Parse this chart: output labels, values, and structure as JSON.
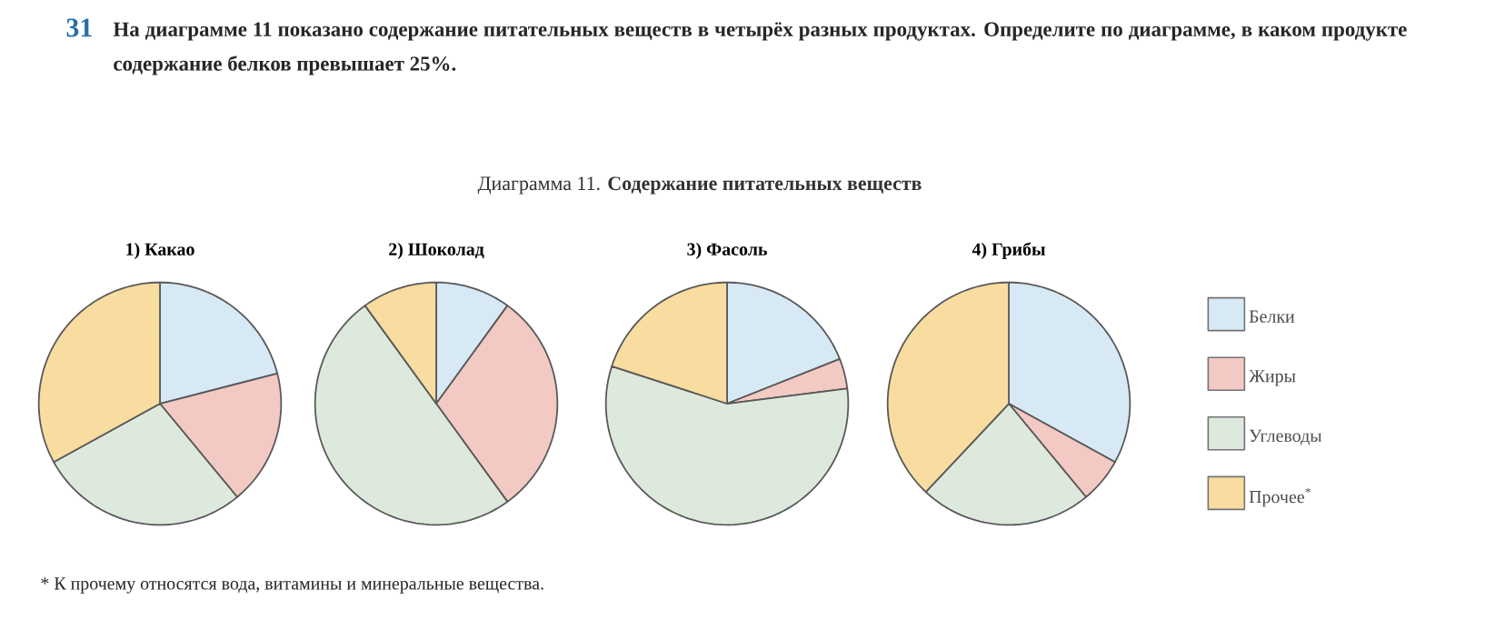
{
  "chart_data": [
    {
      "type": "pie",
      "title": "1) Какао",
      "categories": [
        null,
        null,
        null,
        null
      ],
      "values": [
        21,
        18,
        28,
        33
      ],
      "colors": [
        "#d6e9f5",
        "#f3c9c4",
        "#dde9dc",
        "#f8dca0"
      ],
      "annotations": [
        "31",
        "На диаграмме 11 показано содержание питательных веществ в четырёх разных продуктах. Определите по диаграмме, в каком продукте содержание белков превышает 25%.",
        "Диаграмма 11. **Содержание питательных веществ**",
        "* К прочему относятся вода, витамины и минеральные вещества."
      ]
    },
    {
      "type": "pie",
      "title": "2) Шоколад",
      "categories": [
        null,
        null,
        null,
        null
      ],
      "values": [
        10,
        30,
        50,
        10
      ],
      "colors": [
        "#d6e9f5",
        "#f3c9c4",
        "#dde9dc",
        "#f8dca0"
      ]
    },
    {
      "type": "pie",
      "title": "3) Фасоль",
      "categories": [
        null,
        null,
        null,
        null
      ],
      "values": [
        19,
        4,
        57,
        20
      ],
      "colors": [
        "#d6e9f5",
        "#f3c9c4",
        "#dde9dc",
        "#f8dca0"
      ]
    },
    {
      "type": "pie",
      "title": "4) Грибы",
      "categories": [
        "Белки",
        "Жиры",
        "Углеводы",
        "Прочее$^{*}$"
      ],
      "values": [
        33,
        6,
        23,
        38
      ],
      "colors": [
        "#d6e9f5",
        "#f3c9c4",
        "#dde9dc",
        "#f8dca0"
      ],
      "legend": "right"
    }
  ]
}
